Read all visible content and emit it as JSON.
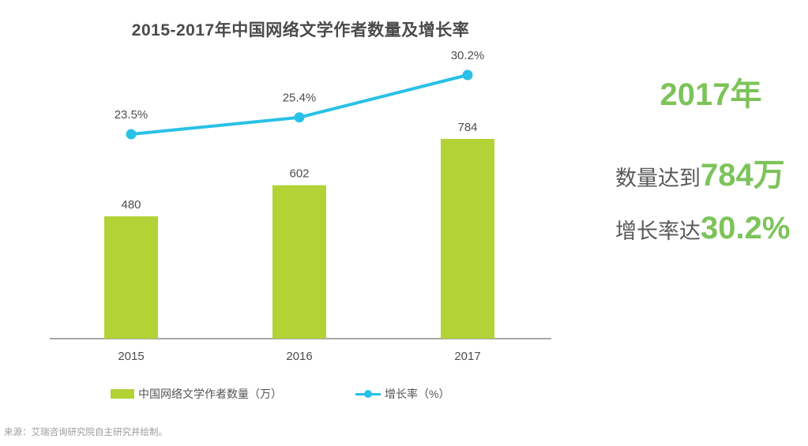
{
  "chart_data": {
    "type": "combo",
    "title": "2015-2017年中国网络文学作者数量及增长率",
    "categories": [
      "2015",
      "2016",
      "2017"
    ],
    "series": [
      {
        "name": "中国网络文学作者数量（万）",
        "type": "bar",
        "values": [
          480,
          602,
          784
        ],
        "color": "#B2D235"
      },
      {
        "name": "增长率（%）",
        "type": "line",
        "values": [
          23.5,
          25.4,
          30.2
        ],
        "color": "#29C1E7"
      }
    ],
    "bar_labels": [
      "480",
      "602",
      "784"
    ],
    "growth_labels": [
      "23.5%",
      "25.4%",
      "30.2%"
    ],
    "xlabel": "",
    "ylabel": "",
    "legend_position": "bottom",
    "grid": false
  },
  "highlight": {
    "year": "2017年",
    "count_label": "数量达到",
    "count_value": "784万",
    "rate_label": "增长率达",
    "rate_value": "30.2%"
  },
  "source": "来源：艾瑞咨询研究院自主研究并绘制。",
  "colors": {
    "bar": "#B2D235",
    "line": "#29C1E7",
    "highlight_green": "#7DC35A",
    "text_dark": "#4D4D4D",
    "text_gray": "#58595B",
    "axis": "#A7A7A7",
    "source_gray": "#9B9B9B"
  }
}
